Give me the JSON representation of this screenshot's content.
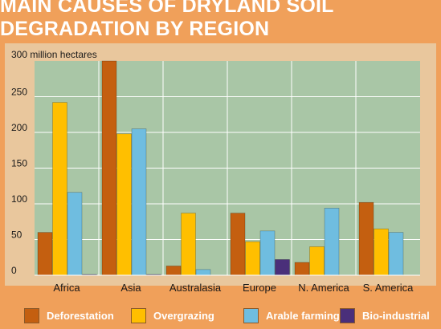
{
  "title": "MAIN CAUSES OF DRYLAND SOIL DEGRADATION BY REGION",
  "chart_data": {
    "type": "bar",
    "title": "MAIN CAUSES OF DRYLAND SOIL DEGRADATION BY REGION",
    "ylabel": "300 million hectares",
    "xlabel": "",
    "ylim": [
      0,
      300
    ],
    "yticks": [
      0,
      50,
      100,
      150,
      200,
      250
    ],
    "categories": [
      "Africa",
      "Asia",
      "Australasia",
      "Europe",
      "N. America",
      "S. America"
    ],
    "series": [
      {
        "name": "Deforestation",
        "color": "#c45f10",
        "values": [
          60,
          300,
          13,
          87,
          18,
          102
        ]
      },
      {
        "name": "Overgrazing",
        "color": "#ffbf00",
        "values": [
          242,
          198,
          87,
          47,
          40,
          65
        ]
      },
      {
        "name": "Arable farming",
        "color": "#6fbde0",
        "values": [
          116,
          205,
          8,
          62,
          94,
          60
        ]
      },
      {
        "name": "Bio-industrial",
        "color": "#4a2f7a",
        "values": [
          1,
          1,
          0,
          22,
          0,
          0
        ]
      }
    ],
    "grid": true,
    "legend_position": "bottom"
  }
}
